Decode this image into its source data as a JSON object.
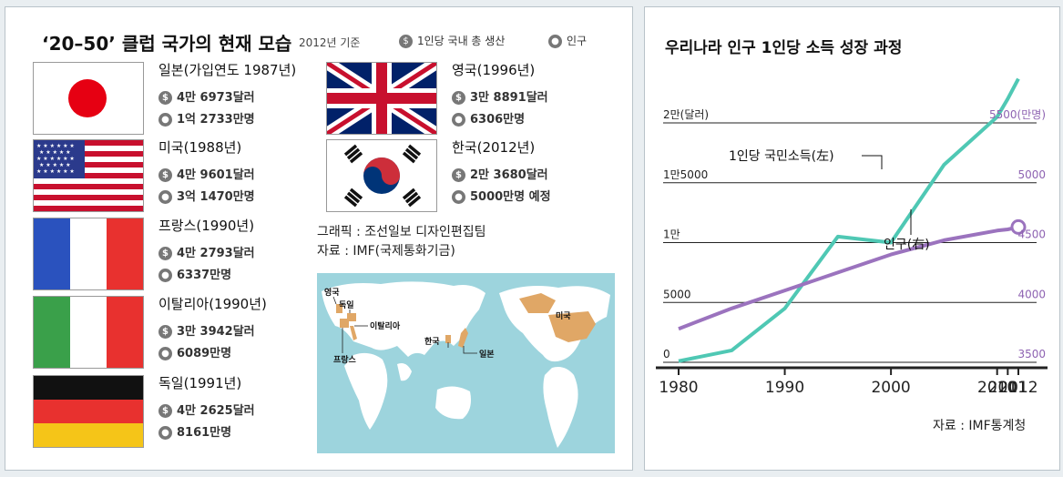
{
  "left_panel": {
    "title": "‘20–50’ 클럽 국가의 현재 모습",
    "basis": "2012년 기준",
    "legend_gdp_icon": "$",
    "legend_gdp": "1인당 국내 총 생산",
    "legend_pop_icon": "person-icon",
    "legend_pop": "인구",
    "countries": [
      {
        "name": "일본(가입연도 1987년)",
        "gdp": "4만 6973달러",
        "pop": "1억 2733만명",
        "flag": "japan"
      },
      {
        "name": "미국(1988년)",
        "gdp": "4만 9601달러",
        "pop": "3억 1470만명",
        "flag": "usa"
      },
      {
        "name": "프랑스(1990년)",
        "gdp": "4만 2793달러",
        "pop": "6337만명",
        "flag": "france"
      },
      {
        "name": "이탈리아(1990년)",
        "gdp": "3만 3942달러",
        "pop": "6089만명",
        "flag": "italy"
      },
      {
        "name": "독일(1991년)",
        "gdp": "4만 2625달러",
        "pop": "8161만명",
        "flag": "germany"
      },
      {
        "name": "영국(1996년)",
        "gdp": "3만 8891달러",
        "pop": "6306만명",
        "flag": "uk"
      },
      {
        "name": "한국(2012년)",
        "gdp": "2만 3680달러",
        "pop": "5000만명 예정",
        "flag": "korea"
      }
    ],
    "credit_graphic": "그래픽 : 조선일보 디자인편집팀",
    "credit_source": "자료 : IMF(국제통화기금)",
    "map_labels": [
      "영국",
      "독일",
      "이탈리아",
      "프랑스",
      "한국",
      "일본",
      "미국"
    ],
    "colors": {
      "map_water": "#9dd4dd",
      "map_land": "#ffffff",
      "map_highlight": "#e0a766"
    }
  },
  "chart_data": {
    "type": "line",
    "title": "우리나라 인구 1인당 소득 성장 과정",
    "x_ticks": [
      "1980",
      "1990",
      "2000",
      "2010",
      "2011",
      "2012"
    ],
    "left_axis": {
      "ticks": [
        0,
        5000,
        10000,
        15000,
        20000
      ],
      "tick_labels": [
        "0",
        "5000",
        "1만",
        "1만5000",
        "2만(달러)"
      ],
      "ylim": [
        0,
        20000
      ]
    },
    "right_axis": {
      "ticks": [
        3500,
        4000,
        4500,
        5000,
        5500
      ],
      "tick_labels": [
        "3500",
        "4000",
        "4500",
        "5000",
        "5500(만명)"
      ],
      "ylim": [
        3500,
        5500
      ]
    },
    "series": [
      {
        "name": "1인당 국민소득(左)",
        "axis": "left",
        "color": "#4fc8b4",
        "points": [
          [
            1980,
            100
          ],
          [
            1985,
            1000
          ],
          [
            1990,
            4500
          ],
          [
            1995,
            10500
          ],
          [
            2000,
            10000
          ],
          [
            2005,
            16500
          ],
          [
            2010,
            20500
          ],
          [
            2011,
            22000
          ],
          [
            2012,
            23680
          ]
        ]
      },
      {
        "name": "인구(右)",
        "axis": "right",
        "color": "#9b73be",
        "points": [
          [
            1980,
            3780
          ],
          [
            1985,
            3950
          ],
          [
            1990,
            4100
          ],
          [
            1995,
            4250
          ],
          [
            2000,
            4400
          ],
          [
            2005,
            4520
          ],
          [
            2010,
            4600
          ],
          [
            2011,
            4610
          ],
          [
            2012,
            4630
          ]
        ]
      }
    ],
    "source": "자료 : IMF통계청",
    "colors": {
      "grid": "#222222",
      "right_labels": "#8e63b2"
    }
  }
}
